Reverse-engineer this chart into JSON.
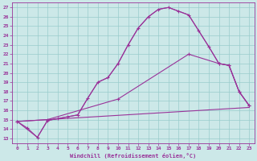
{
  "xlabel": "Windchill (Refroidissement éolien,°C)",
  "background_color": "#cce8e8",
  "grid_color": "#99cccc",
  "line_color": "#993399",
  "xlim": [
    -0.5,
    23.5
  ],
  "ylim": [
    12.5,
    27.5
  ],
  "xticks": [
    0,
    1,
    2,
    3,
    4,
    5,
    6,
    7,
    8,
    9,
    10,
    11,
    12,
    13,
    14,
    15,
    16,
    17,
    18,
    19,
    20,
    21,
    22,
    23
  ],
  "yticks": [
    13,
    14,
    15,
    16,
    17,
    18,
    19,
    20,
    21,
    22,
    23,
    24,
    25,
    26,
    27
  ],
  "lines": [
    {
      "x": [
        0,
        1,
        2,
        3,
        4,
        5,
        6,
        7,
        8,
        9,
        10,
        11,
        12,
        13,
        14,
        15,
        16,
        17,
        18,
        19,
        20,
        21,
        22,
        23
      ],
      "y": [
        14.8,
        14.1,
        13.1,
        14.9,
        15.1,
        15.3,
        15.5,
        17.3,
        19.0,
        19.5,
        21.0,
        23.0,
        24.8,
        26.0,
        26.8,
        27.0,
        26.6,
        26.2,
        24.5,
        22.8,
        21.0,
        20.8,
        18.0,
        16.5
      ],
      "marker": "+",
      "markersize": 3
    },
    {
      "x": [
        0,
        2,
        3,
        4,
        5,
        6,
        7,
        8,
        9,
        10,
        11,
        12,
        13,
        14,
        15,
        16,
        17,
        18,
        19,
        20,
        21,
        22,
        23
      ],
      "y": [
        14.8,
        13.1,
        14.9,
        15.1,
        15.3,
        15.5,
        17.3,
        19.0,
        19.5,
        21.0,
        23.0,
        24.8,
        26.0,
        26.8,
        27.0,
        26.6,
        26.2,
        24.5,
        22.8,
        21.0,
        20.8,
        18.0,
        16.5
      ],
      "marker": null,
      "markersize": 0
    },
    {
      "x": [
        0,
        3,
        10,
        17,
        20,
        21,
        22,
        23
      ],
      "y": [
        14.8,
        15.0,
        17.2,
        22.0,
        21.0,
        20.8,
        18.0,
        16.5
      ],
      "marker": "+",
      "markersize": 3
    },
    {
      "x": [
        0,
        3,
        23
      ],
      "y": [
        14.8,
        15.0,
        16.3
      ],
      "marker": null,
      "markersize": 0
    }
  ]
}
